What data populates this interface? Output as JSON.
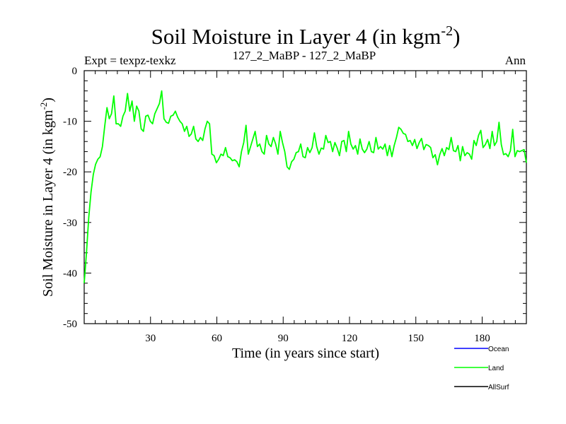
{
  "chart_data": {
    "type": "line",
    "title": "Soil Moisture in Layer 4 (in kgm",
    "title_sup": "-2",
    "title_close": ")",
    "subtitle_left": "Expt = texpz-texkz",
    "subtitle_center": "127_2_MaBP - 127_2_MaBP",
    "subtitle_right": "Ann",
    "xlabel": "Time (in years since start)",
    "ylabel": "Soil Moisture in Layer 4 (in kgm",
    "ylabel_sup": "-2",
    "ylabel_close": ")",
    "xlim": [
      0,
      200
    ],
    "ylim": [
      -50,
      0
    ],
    "xticks": [
      30,
      60,
      90,
      120,
      150,
      180
    ],
    "yticks": [
      0,
      -10,
      -20,
      -30,
      -40,
      -50
    ],
    "legend": [
      {
        "name": "Ocean",
        "color": "#0000ff"
      },
      {
        "name": "Land",
        "color": "#00ff00"
      },
      {
        "name": "AllSurf",
        "color": "#000000"
      }
    ],
    "series": [
      {
        "name": "Land",
        "color": "#00ff00",
        "values": [
          -42,
          -36,
          -29,
          -24,
          -20.5,
          -18.5,
          -17.5,
          -17,
          -15,
          -11,
          -7.3,
          -9.5,
          -8.5,
          -5,
          -10.5,
          -10.5,
          -11,
          -9,
          -8,
          -4.5,
          -8,
          -6,
          -10,
          -7,
          -8,
          -11.5,
          -12,
          -9,
          -8.8,
          -10,
          -10.5,
          -8.5,
          -7.5,
          -6.5,
          -4,
          -9.5,
          -10.2,
          -10.4,
          -9,
          -8.8,
          -8,
          -9.2,
          -10,
          -10.5,
          -12,
          -11,
          -13,
          -12.5,
          -11,
          -13.5,
          -14,
          -13.2,
          -13.8,
          -11.5,
          -10,
          -10.5,
          -16.5,
          -16.8,
          -18.2,
          -17.5,
          -16.5,
          -16.8,
          -15.2,
          -17,
          -17.2,
          -17.8,
          -17.6,
          -18,
          -19,
          -16,
          -14.2,
          -10.8,
          -16.5,
          -15,
          -13.5,
          -12,
          -15,
          -14.5,
          -16,
          -16.5,
          -12.8,
          -14.5,
          -15,
          -13.2,
          -14.5,
          -16.5,
          -12,
          -14.2,
          -16,
          -19,
          -19.5,
          -18,
          -17.5,
          -16.2,
          -16,
          -14.5,
          -17,
          -17.2,
          -15.2,
          -16.2,
          -15.2,
          -12.3,
          -15,
          -16.5,
          -15.3,
          -15.5,
          -12.8,
          -14.2,
          -14,
          -16,
          -14.2,
          -15.3,
          -16.8,
          -14,
          -13.8,
          -16,
          -12,
          -14.5,
          -15.5,
          -14.8,
          -16.5,
          -13.5,
          -15.5,
          -16.2,
          -15.5,
          -14,
          -16,
          -16.2,
          -13.2,
          -15.5,
          -15,
          -15.5,
          -14.5,
          -16.8,
          -14.8,
          -17,
          -14.8,
          -13.2,
          -11.2,
          -11.6,
          -12.4,
          -12.6,
          -14,
          -13.8,
          -14.8,
          -13.6,
          -15.4,
          -14.2,
          -13.4,
          -15.6,
          -14.6,
          -14.8,
          -15.2,
          -17.2,
          -16.6,
          -18.6,
          -16.6,
          -15.4,
          -16.8,
          -15.2,
          -15.6,
          -13.2,
          -15.8,
          -16,
          -14.8,
          -17.8,
          -15,
          -16.8,
          -16.2,
          -16.5,
          -17.5,
          -13.8,
          -14.8,
          -12.8,
          -11.8,
          -15.2,
          -14.6,
          -13.6,
          -15.4,
          -12,
          -14.8,
          -14,
          -10.2,
          -14.6,
          -16.6,
          -16.4,
          -17,
          -15.8,
          -11.6,
          -17,
          -15.8,
          -16,
          -15.8,
          -15.6,
          -18.2
        ]
      }
    ]
  }
}
